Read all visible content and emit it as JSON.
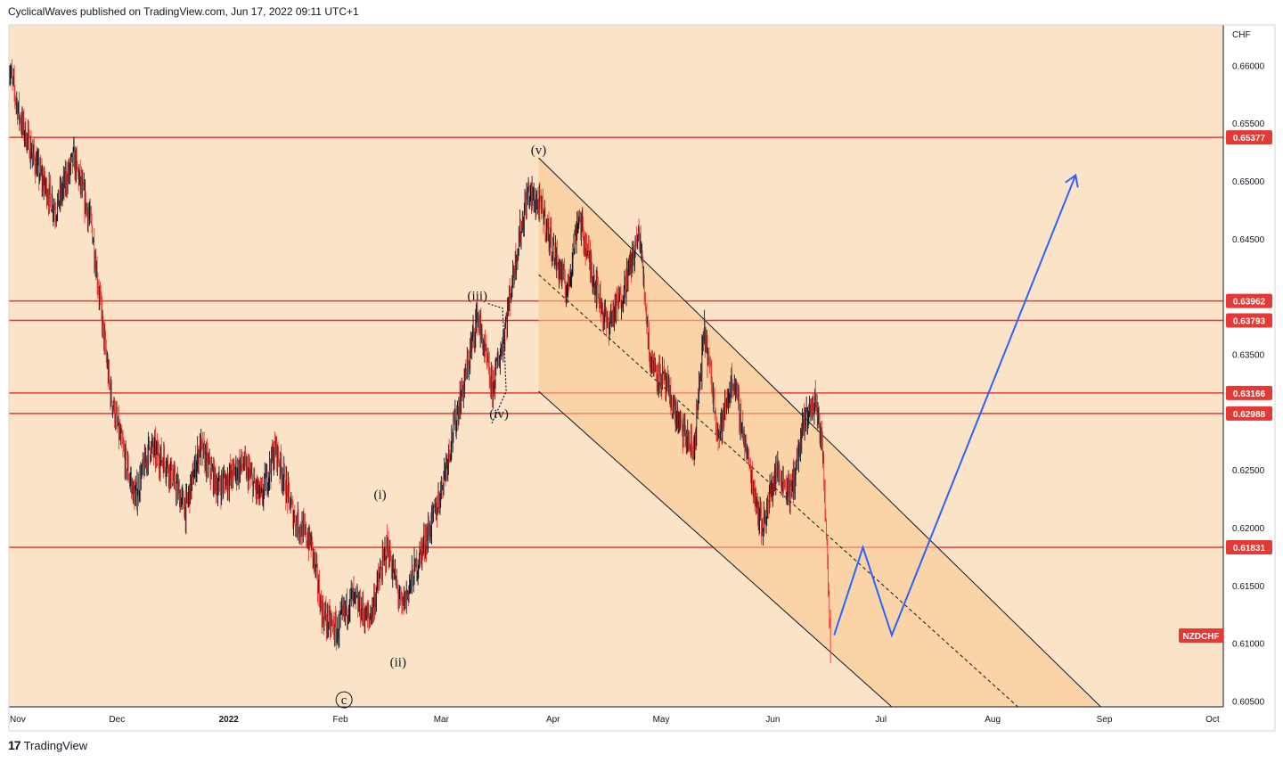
{
  "header": {
    "publisher_line": "CyclicalWaves published on TradingView.com, Jun 17, 2022 09:11 UTC+1"
  },
  "footer": {
    "brand": "TradingView",
    "logo_mark": "17"
  },
  "colors": {
    "background": "#fbe3c8",
    "channel_fill": "#f9c98c",
    "level_line": "#e53935",
    "candle_up": "#131722",
    "candle_down": "#e53935",
    "projection": "#2962ff",
    "symbol_tag": "#e53935"
  },
  "chart_data": {
    "type": "candlestick",
    "symbol": "NZDCHF",
    "currency": "CHF",
    "x_ticks": [
      "Nov",
      "Dec",
      "2022",
      "Feb",
      "Mar",
      "Apr",
      "May",
      "Jun",
      "Jul",
      "Aug",
      "Sep",
      "Oct"
    ],
    "y_ticks": [
      "0.66000",
      "0.65500",
      "0.65000",
      "0.64500",
      "0.63500",
      "0.62500",
      "0.62000",
      "0.61500",
      "0.61000",
      "0.60500"
    ],
    "ylim": [
      0.6045,
      0.6635
    ],
    "level_lines": [
      "0.65377",
      "0.63962",
      "0.63793",
      "0.63166",
      "0.62988",
      "0.61831"
    ],
    "price_path": [
      [
        "2021-11-01",
        0.66
      ],
      [
        "2021-11-04",
        0.6555
      ],
      [
        "2021-11-09",
        0.651
      ],
      [
        "2021-11-14",
        0.6475
      ],
      [
        "2021-11-19",
        0.652
      ],
      [
        "2021-11-24",
        0.646
      ],
      [
        "2021-11-29",
        0.632
      ],
      [
        "2021-12-02",
        0.6275
      ],
      [
        "2021-12-06",
        0.6225
      ],
      [
        "2021-12-10",
        0.627
      ],
      [
        "2021-12-15",
        0.6255
      ],
      [
        "2021-12-20",
        0.6215
      ],
      [
        "2021-12-24",
        0.627
      ],
      [
        "2021-12-29",
        0.6235
      ],
      [
        "2022-01-05",
        0.6255
      ],
      [
        "2022-01-10",
        0.6225
      ],
      [
        "2022-01-14",
        0.627
      ],
      [
        "2022-01-19",
        0.621
      ],
      [
        "2022-01-24",
        0.6185
      ],
      [
        "2022-01-27",
        0.6125
      ],
      [
        "2022-01-31",
        0.611
      ],
      [
        "2022-02-04",
        0.614
      ],
      [
        "2022-02-09",
        0.612
      ],
      [
        "2022-02-14",
        0.6185
      ],
      [
        "2022-02-18",
        0.613
      ],
      [
        "2022-02-23",
        0.6175
      ],
      [
        "2022-02-28",
        0.622
      ],
      [
        "2022-03-04",
        0.628
      ],
      [
        "2022-03-08",
        0.6335
      ],
      [
        "2022-03-11",
        0.6385
      ],
      [
        "2022-03-15",
        0.632
      ],
      [
        "2022-03-18",
        0.636
      ],
      [
        "2022-03-22",
        0.644
      ],
      [
        "2022-03-25",
        0.649
      ],
      [
        "2022-03-29",
        0.6475
      ],
      [
        "2022-04-01",
        0.644
      ],
      [
        "2022-04-05",
        0.6405
      ],
      [
        "2022-04-08",
        0.647
      ],
      [
        "2022-04-12",
        0.642
      ],
      [
        "2022-04-16",
        0.6375
      ],
      [
        "2022-04-20",
        0.64
      ],
      [
        "2022-04-25",
        0.6455
      ],
      [
        "2022-04-28",
        0.6345
      ],
      [
        "2022-05-02",
        0.6325
      ],
      [
        "2022-05-06",
        0.629
      ],
      [
        "2022-05-10",
        0.6265
      ],
      [
        "2022-05-13",
        0.637
      ],
      [
        "2022-05-17",
        0.628
      ],
      [
        "2022-05-21",
        0.633
      ],
      [
        "2022-05-25",
        0.626
      ],
      [
        "2022-05-29",
        0.62
      ],
      [
        "2022-06-02",
        0.625
      ],
      [
        "2022-06-06",
        0.623
      ],
      [
        "2022-06-10",
        0.6295
      ],
      [
        "2022-06-13",
        0.631
      ],
      [
        "2022-06-15",
        0.626
      ],
      [
        "2022-06-16",
        0.6185
      ],
      [
        "2022-06-17",
        0.61
      ]
    ],
    "channel": {
      "upper": [
        [
          "2022-03-28",
          0.652
        ],
        [
          "2022-08-31",
          0.6045
        ]
      ],
      "lower": [
        [
          "2022-03-28",
          0.6318
        ],
        [
          "2022-07-04",
          0.6045
        ]
      ],
      "mid": [
        [
          "2022-03-28",
          0.6419
        ],
        [
          "2022-08-08",
          0.6045
        ]
      ]
    },
    "projection": [
      [
        "2022-06-18",
        0.6107
      ],
      [
        "2022-06-26",
        0.6183
      ],
      [
        "2022-07-04",
        0.6107
      ],
      [
        "2022-08-24",
        0.6505
      ]
    ],
    "projection_arrow": {
      "point": [
        "2022-08-24",
        0.6505
      ]
    },
    "wave_labels": [
      {
        "text": "(v)",
        "x": "2022-03-28",
        "y": 0.6523
      },
      {
        "text": "(iii)",
        "x": "2022-03-11",
        "y": 0.6397
      },
      {
        "text": "(iv)",
        "x": "2022-03-17",
        "y": 0.6295
      },
      {
        "text": "(i)",
        "x": "2022-02-12",
        "y": 0.6225
      },
      {
        "text": "(ii)",
        "x": "2022-02-17",
        "y": 0.608
      },
      {
        "text": "c",
        "x": "2022-02-02",
        "y": 0.6048,
        "circled": true
      }
    ],
    "grid": false,
    "legend": "none"
  }
}
